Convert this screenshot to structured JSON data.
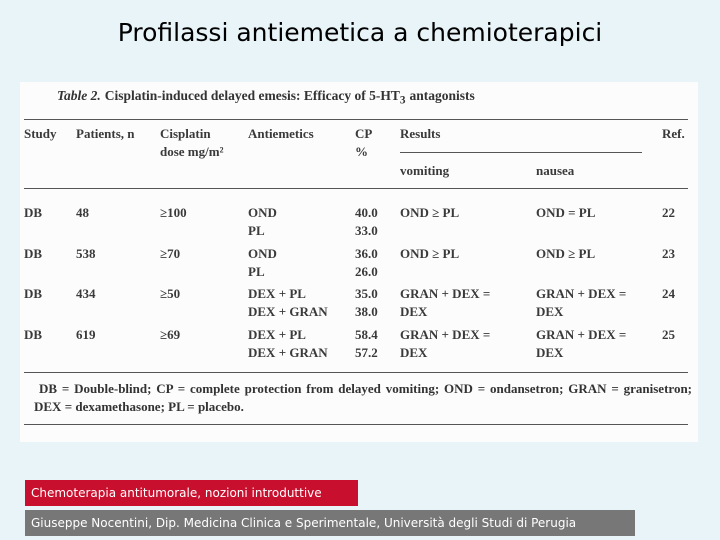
{
  "title": "Profilassi antiemetica a chemioterapici",
  "table": {
    "caption": {
      "label": "Table 2.",
      "text": "Cisplatin-induced delayed emesis: Efficacy of 5-HT",
      "sub": "3",
      "tail": "antagonists"
    },
    "header": [
      [
        "Study"
      ],
      [
        "Patients, n"
      ],
      [
        "Cisplatin",
        "dose mg/m²"
      ],
      [
        "Antiemetics"
      ],
      [
        "CP",
        "%"
      ],
      [
        "Results"
      ],
      [
        "Ref."
      ]
    ],
    "subheader": [
      "vomiting",
      "nausea"
    ],
    "rows": [
      [
        [
          "DB"
        ],
        [
          "48"
        ],
        [
          "≥100"
        ],
        [
          "OND",
          "PL"
        ],
        [
          "40.0",
          "33.0"
        ],
        [
          "OND ≥ PL"
        ],
        [
          "OND = PL"
        ],
        [
          "22"
        ]
      ],
      [
        [
          "DB"
        ],
        [
          "538"
        ],
        [
          "≥70"
        ],
        [
          "OND",
          "PL"
        ],
        [
          "36.0",
          "26.0"
        ],
        [
          "OND ≥ PL"
        ],
        [
          "OND ≥ PL"
        ],
        [
          "23"
        ]
      ],
      [
        [
          "DB"
        ],
        [
          "434"
        ],
        [
          "≥50"
        ],
        [
          "DEX + PL",
          "DEX + GRAN"
        ],
        [
          "35.0",
          "38.0"
        ],
        [
          "GRAN + DEX =",
          "DEX"
        ],
        [
          "GRAN + DEX =",
          "DEX"
        ],
        [
          "24"
        ]
      ],
      [
        [
          "DB"
        ],
        [
          "619"
        ],
        [
          "≥69"
        ],
        [
          "DEX + PL",
          "DEX + GRAN"
        ],
        [
          "58.4",
          "57.2"
        ],
        [
          "GRAN + DEX =",
          "DEX"
        ],
        [
          "GRAN + DEX =",
          "DEX"
        ],
        [
          "25"
        ]
      ]
    ],
    "footnote": "DB = Double-blind; CP = complete protection from delayed vomiting; OND = ondansetron; GRAN = granisetron; DEX = dexamethasone; PL = placebo."
  },
  "footer": {
    "course": "Chemoterapia antitumorale, nozioni introduttive",
    "author": "Giuseppe Nocentini, Dip. Medicina Clinica e Sperimentale, Università degli Studi di Perugia"
  }
}
